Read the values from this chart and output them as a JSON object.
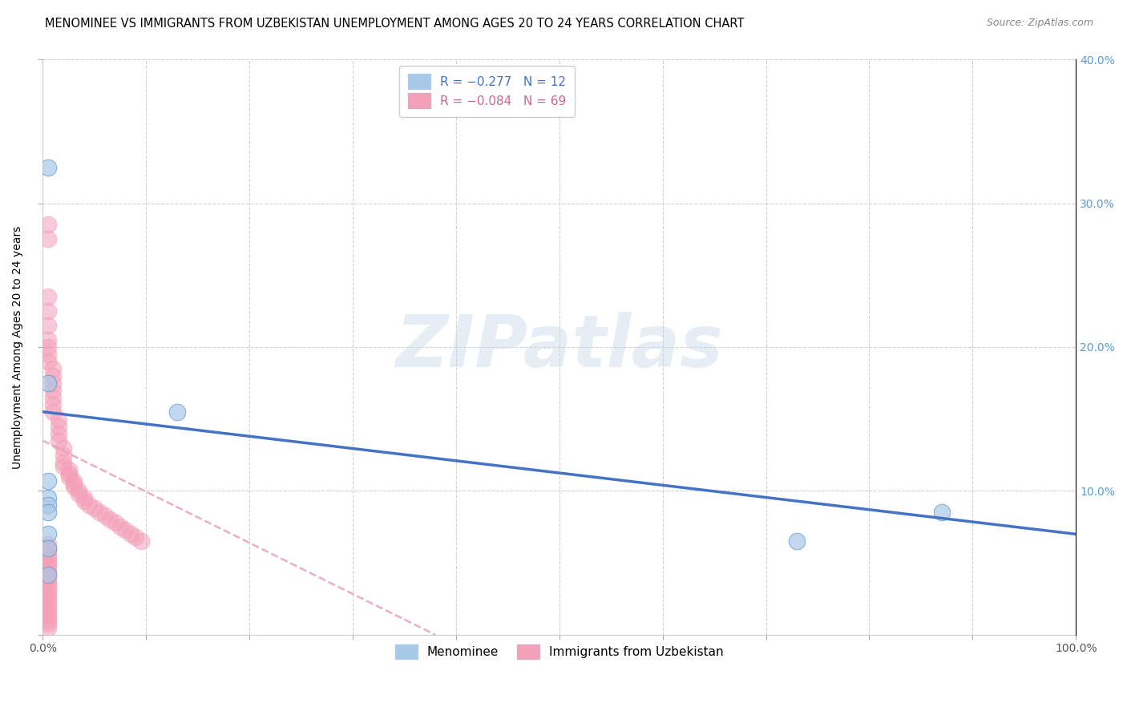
{
  "title": "MENOMINEE VS IMMIGRANTS FROM UZBEKISTAN UNEMPLOYMENT AMONG AGES 20 TO 24 YEARS CORRELATION CHART",
  "source": "Source: ZipAtlas.com",
  "xlabel": "",
  "ylabel": "Unemployment Among Ages 20 to 24 years",
  "xlim": [
    0,
    1.0
  ],
  "ylim": [
    0,
    0.4
  ],
  "xticks": [
    0.0,
    0.1,
    0.2,
    0.3,
    0.4,
    0.5,
    0.6,
    0.7,
    0.8,
    0.9,
    1.0
  ],
  "xticklabels": [
    "0.0%",
    "",
    "",
    "",
    "",
    "",
    "",
    "",
    "",
    "",
    "100.0%"
  ],
  "yticks": [
    0.0,
    0.1,
    0.2,
    0.3,
    0.4
  ],
  "yticklabels_right": [
    "",
    "10.0%",
    "20.0%",
    "30.0%",
    "40.0%"
  ],
  "watermark": "ZIPatlas",
  "legend_label1": "Menominee",
  "legend_label2": "Immigrants from Uzbekistan",
  "color_blue": "#a8c8e8",
  "color_pink": "#f4a0b8",
  "color_blue_line": "#4472c4",
  "color_pink_line": "#e8a0b8",
  "menominee_x": [
    0.005,
    0.005,
    0.13,
    0.005,
    0.005,
    0.005,
    0.005,
    0.005,
    0.73,
    0.87,
    0.005,
    0.005
  ],
  "menominee_y": [
    0.325,
    0.175,
    0.155,
    0.107,
    0.095,
    0.09,
    0.085,
    0.07,
    0.065,
    0.085,
    0.06,
    0.042
  ],
  "uzbek_x": [
    0.005,
    0.005,
    0.005,
    0.005,
    0.005,
    0.005,
    0.005,
    0.005,
    0.005,
    0.01,
    0.01,
    0.01,
    0.01,
    0.01,
    0.01,
    0.01,
    0.015,
    0.015,
    0.015,
    0.015,
    0.02,
    0.02,
    0.02,
    0.02,
    0.025,
    0.025,
    0.025,
    0.03,
    0.03,
    0.03,
    0.035,
    0.035,
    0.04,
    0.04,
    0.045,
    0.05,
    0.055,
    0.06,
    0.065,
    0.07,
    0.075,
    0.08,
    0.085,
    0.09,
    0.095,
    0.005,
    0.005,
    0.005,
    0.005,
    0.005,
    0.005,
    0.005,
    0.005,
    0.005,
    0.005,
    0.005,
    0.005,
    0.005,
    0.005,
    0.005,
    0.005,
    0.005,
    0.005,
    0.005,
    0.005,
    0.005,
    0.005,
    0.005,
    0.005
  ],
  "uzbek_y": [
    0.285,
    0.275,
    0.235,
    0.225,
    0.215,
    0.205,
    0.2,
    0.195,
    0.19,
    0.185,
    0.18,
    0.175,
    0.17,
    0.165,
    0.16,
    0.155,
    0.15,
    0.145,
    0.14,
    0.135,
    0.13,
    0.125,
    0.12,
    0.117,
    0.115,
    0.112,
    0.11,
    0.107,
    0.105,
    0.103,
    0.1,
    0.098,
    0.095,
    0.093,
    0.09,
    0.088,
    0.085,
    0.083,
    0.08,
    0.078,
    0.075,
    0.073,
    0.07,
    0.068,
    0.065,
    0.063,
    0.06,
    0.058,
    0.055,
    0.053,
    0.05,
    0.048,
    0.045,
    0.043,
    0.04,
    0.038,
    0.035,
    0.033,
    0.03,
    0.028,
    0.025,
    0.023,
    0.02,
    0.018,
    0.015,
    0.013,
    0.01,
    0.008,
    0.005
  ],
  "blue_line_x0": 0.0,
  "blue_line_y0": 0.155,
  "blue_line_x1": 1.0,
  "blue_line_y1": 0.07,
  "pink_line_x0": 0.0,
  "pink_line_y0": 0.135,
  "pink_line_x1": 0.38,
  "pink_line_y1": 0.0,
  "background_color": "#ffffff",
  "grid_color": "#cccccc"
}
